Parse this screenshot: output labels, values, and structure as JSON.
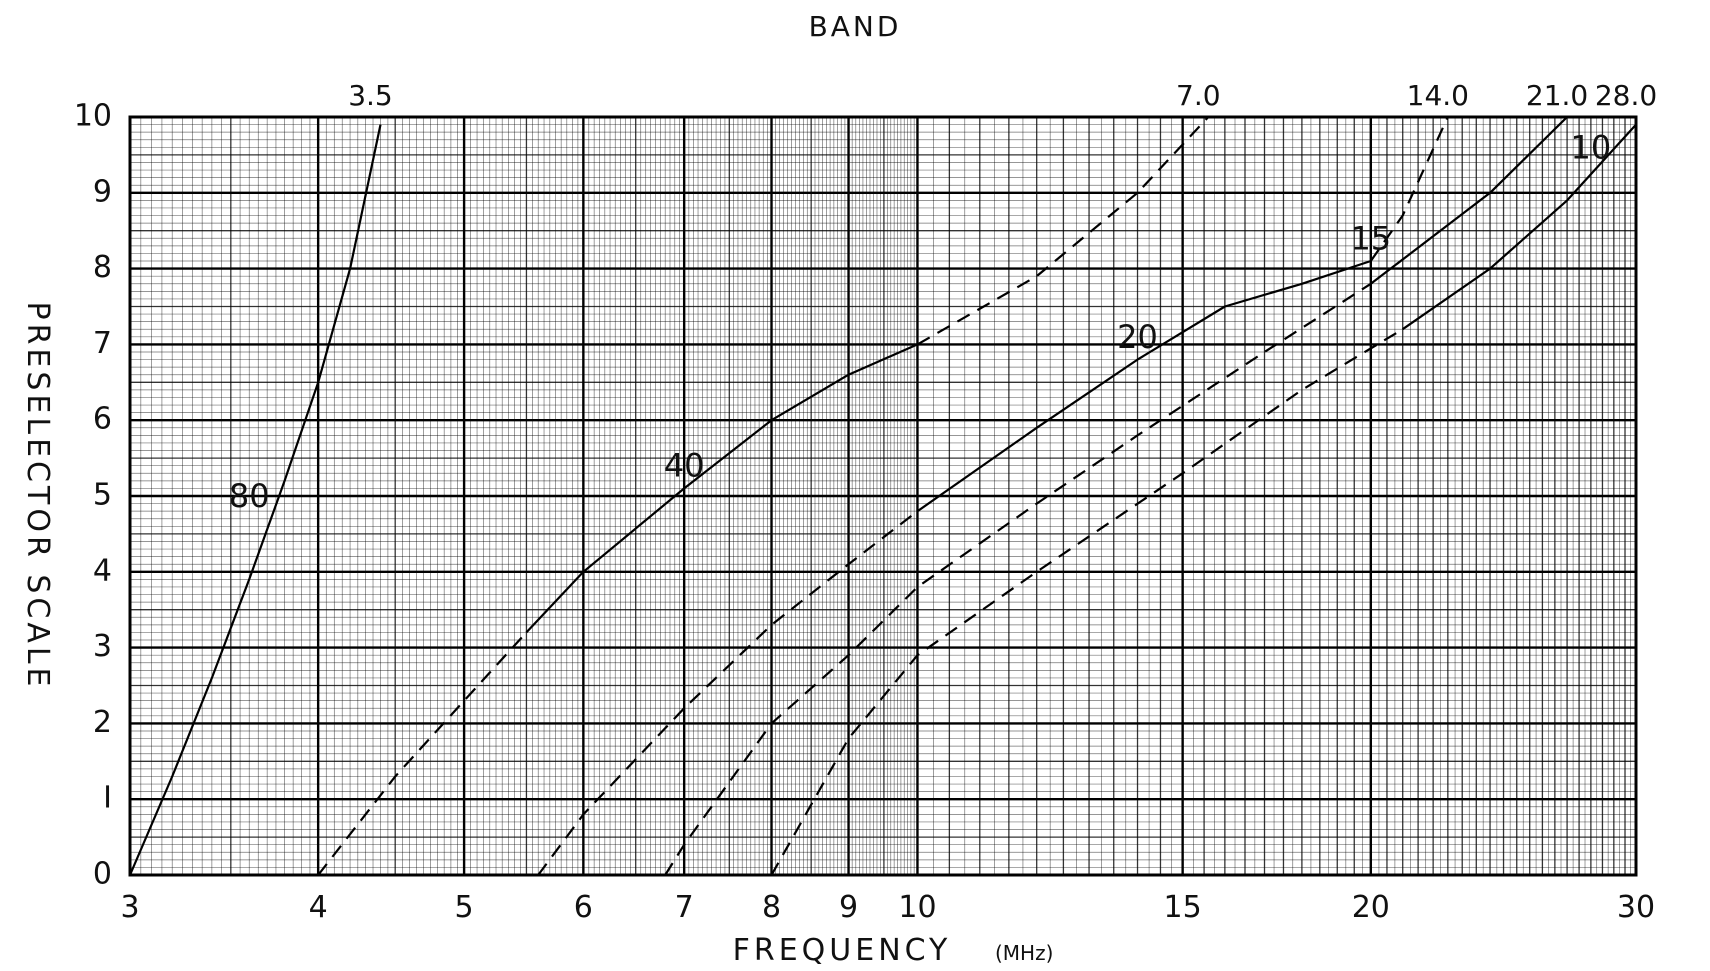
{
  "chart_data": {
    "type": "line",
    "title": "BAND",
    "xlabel": "FREQUENCY",
    "xunit": "(MHz)",
    "ylabel": "PRESELECTOR SCALE",
    "x_scale": "log",
    "xlim": [
      3,
      30
    ],
    "ylim": [
      0,
      10
    ],
    "grid": true,
    "x_ticks": [
      3,
      4,
      5,
      6,
      7,
      8,
      9,
      10,
      15,
      20,
      30
    ],
    "x_tick_labels": [
      "3",
      "4",
      "5",
      "6",
      "7",
      "8",
      "9",
      "10",
      "15",
      "20",
      "30"
    ],
    "y_ticks": [
      0,
      1,
      2,
      3,
      4,
      5,
      6,
      7,
      8,
      9,
      10
    ],
    "y_tick_labels": [
      "0",
      "I",
      "2",
      "3",
      "4",
      "5",
      "6",
      "7",
      "8",
      "9",
      "10"
    ],
    "top_band_markers": [
      {
        "label": "3.5",
        "x": 4.4
      },
      {
        "label": "7.0",
        "x": 15.6
      },
      {
        "label": "14.0",
        "x": 22.5
      },
      {
        "label": "21.0",
        "x": 27.0
      },
      {
        "label": "28.0",
        "x": 30.0
      }
    ],
    "band_labels": [
      {
        "label": "80",
        "x": 3.6,
        "y": 5.0
      },
      {
        "label": "40",
        "x": 7.0,
        "y": 5.4
      },
      {
        "label": "20",
        "x": 14.0,
        "y": 7.1
      },
      {
        "label": "15",
        "x": 20.0,
        "y": 8.4
      },
      {
        "label": "10",
        "x": 28.0,
        "y": 9.6
      }
    ],
    "series": [
      {
        "style": "solid",
        "x": [
          3.0,
          3.2,
          3.4,
          3.6,
          3.8,
          4.0,
          4.2,
          4.4
        ],
        "y": [
          0.0,
          1.3,
          2.6,
          3.9,
          5.2,
          6.5,
          8.0,
          9.9
        ]
      },
      {
        "style": "dashed",
        "x": [
          4.0,
          4.5,
          5.0,
          5.5
        ],
        "y": [
          0.0,
          1.3,
          2.3,
          3.2
        ]
      },
      {
        "style": "solid",
        "x": [
          5.5,
          6.0,
          7.0,
          8.0,
          9.0,
          10.0
        ],
        "y": [
          3.2,
          4.0,
          5.1,
          6.0,
          6.6,
          7.0
        ]
      },
      {
        "style": "dashed",
        "x": [
          10.0,
          12.0,
          14.0,
          15.6
        ],
        "y": [
          7.0,
          7.9,
          9.0,
          10.0
        ]
      },
      {
        "style": "dashed",
        "x": [
          5.6,
          6.0,
          7.0,
          8.0,
          9.0,
          10.0
        ],
        "y": [
          0.0,
          0.8,
          2.2,
          3.3,
          4.1,
          4.8
        ]
      },
      {
        "style": "solid",
        "x": [
          10.0,
          12.0,
          14.0,
          16.0,
          18.0,
          20.0
        ],
        "y": [
          4.8,
          5.9,
          6.8,
          7.5,
          7.8,
          8.1
        ]
      },
      {
        "style": "dashed",
        "x": [
          20.0,
          21.0,
          22.5
        ],
        "y": [
          8.1,
          8.7,
          10.0
        ]
      },
      {
        "style": "dashed",
        "x": [
          6.8,
          7.0,
          8.0,
          9.0,
          10.0,
          12.0,
          14.0,
          17.0,
          20.0
        ],
        "y": [
          0.0,
          0.4,
          2.0,
          2.9,
          3.8,
          4.9,
          5.8,
          6.9,
          7.8
        ]
      },
      {
        "style": "solid",
        "x": [
          20.0,
          24.0,
          27.0
        ],
        "y": [
          7.8,
          9.0,
          10.0
        ]
      },
      {
        "style": "dashed",
        "x": [
          8.0,
          9.0,
          10.0,
          12.0,
          15.0,
          18.0,
          21.0
        ],
        "y": [
          0.0,
          1.8,
          2.9,
          4.0,
          5.3,
          6.4,
          7.2
        ]
      },
      {
        "style": "solid",
        "x": [
          21.0,
          24.0,
          27.0,
          30.0
        ],
        "y": [
          7.2,
          8.0,
          8.9,
          9.9
        ]
      }
    ]
  }
}
